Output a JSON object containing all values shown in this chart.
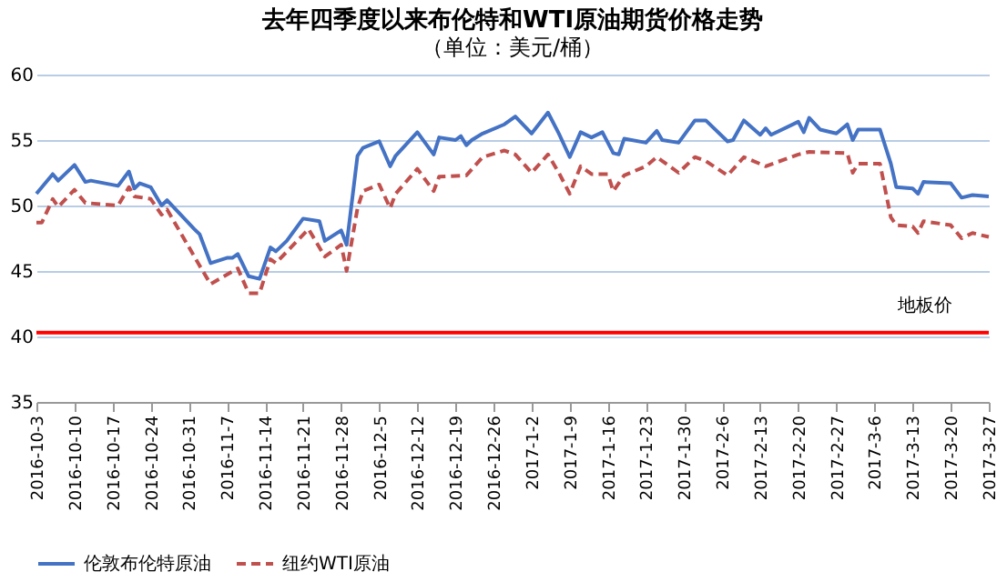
{
  "chart_data": {
    "type": "line",
    "title": "去年四季度以来布伦特和WTI原油期货价格走势",
    "subtitle": "（单位：美元/桶）",
    "xlim": [
      "2016-10-03",
      "2017-03-27"
    ],
    "xticks": [
      {
        "value": "2016-10-03",
        "label": "2016-10-3"
      },
      {
        "value": "2016-10-10",
        "label": "2016-10-10"
      },
      {
        "value": "2016-10-17",
        "label": "2016-10-17"
      },
      {
        "value": "2016-10-24",
        "label": "2016-10-24"
      },
      {
        "value": "2016-10-31",
        "label": "2016-10-31"
      },
      {
        "value": "2016-11-07",
        "label": "2016-11-7"
      },
      {
        "value": "2016-11-14",
        "label": "2016-11-14"
      },
      {
        "value": "2016-11-21",
        "label": "2016-11-21"
      },
      {
        "value": "2016-11-28",
        "label": "2016-11-28"
      },
      {
        "value": "2016-12-05",
        "label": "2016-12-5"
      },
      {
        "value": "2016-12-12",
        "label": "2016-12-12"
      },
      {
        "value": "2016-12-19",
        "label": "2016-12-19"
      },
      {
        "value": "2016-12-26",
        "label": "2016-12-26"
      },
      {
        "value": "2017-01-02",
        "label": "2017-1-2"
      },
      {
        "value": "2017-01-09",
        "label": "2017-1-9"
      },
      {
        "value": "2017-01-16",
        "label": "2017-1-16"
      },
      {
        "value": "2017-01-23",
        "label": "2017-1-23"
      },
      {
        "value": "2017-01-30",
        "label": "2017-1-30"
      },
      {
        "value": "2017-02-06",
        "label": "2017-2-6"
      },
      {
        "value": "2017-02-13",
        "label": "2017-2-13"
      },
      {
        "value": "2017-02-20",
        "label": "2017-2-20"
      },
      {
        "value": "2017-02-27",
        "label": "2017-2-27"
      },
      {
        "value": "2017-03-06",
        "label": "2017-3-6"
      },
      {
        "value": "2017-03-13",
        "label": "2017-3-13"
      },
      {
        "value": "2017-03-20",
        "label": "2017-3-20"
      },
      {
        "value": "2017-03-27",
        "label": "2017-3-27"
      }
    ],
    "ylim": [
      35,
      60
    ],
    "yticks": [
      35,
      40,
      45,
      50,
      55,
      60
    ],
    "grid": "y",
    "legend": "bottom",
    "marker": "none",
    "series": [
      {
        "name": "伦敦布伦特原油",
        "color": "#4472c4",
        "line_style": "solid",
        "x": [
          "2016-10-03",
          "2016-10-06",
          "2016-10-07",
          "2016-10-10",
          "2016-10-12",
          "2016-10-13",
          "2016-10-18",
          "2016-10-20",
          "2016-10-21",
          "2016-10-22",
          "2016-10-24",
          "2016-10-26",
          "2016-10-27",
          "2016-11-01",
          "2016-11-02",
          "2016-11-04",
          "2016-11-07",
          "2016-11-08",
          "2016-11-09",
          "2016-11-11",
          "2016-11-13",
          "2016-11-15",
          "2016-11-16",
          "2016-11-18",
          "2016-11-21",
          "2016-11-24",
          "2016-11-25",
          "2016-11-28",
          "2016-11-29",
          "2016-12-01",
          "2016-12-02",
          "2016-12-05",
          "2016-12-07",
          "2016-12-08",
          "2016-12-12",
          "2016-12-15",
          "2016-12-16",
          "2016-12-19",
          "2016-12-20",
          "2016-12-21",
          "2016-12-22",
          "2016-12-24",
          "2016-12-28",
          "2016-12-30",
          "2017-01-02",
          "2017-01-05",
          "2017-01-07",
          "2017-01-09",
          "2017-01-11",
          "2017-01-13",
          "2017-01-15",
          "2017-01-17",
          "2017-01-18",
          "2017-01-19",
          "2017-01-23",
          "2017-01-25",
          "2017-01-26",
          "2017-01-29",
          "2017-02-01",
          "2017-02-03",
          "2017-02-07",
          "2017-02-08",
          "2017-02-10",
          "2017-02-13",
          "2017-02-14",
          "2017-02-15",
          "2017-02-20",
          "2017-02-21",
          "2017-02-22",
          "2017-02-24",
          "2017-02-27",
          "2017-03-01",
          "2017-03-02",
          "2017-03-03",
          "2017-03-07",
          "2017-03-09",
          "2017-03-10",
          "2017-03-13",
          "2017-03-14",
          "2017-03-15",
          "2017-03-20",
          "2017-03-22",
          "2017-03-24",
          "2017-03-27"
        ],
        "values": [
          50.9,
          52.4,
          51.9,
          53.1,
          51.8,
          51.9,
          51.5,
          52.6,
          51.3,
          51.7,
          51.4,
          50.0,
          50.4,
          48.2,
          47.8,
          45.6,
          46.0,
          46.0,
          46.3,
          44.6,
          44.4,
          46.8,
          46.5,
          47.3,
          49.0,
          48.8,
          47.3,
          48.1,
          47.0,
          53.8,
          54.4,
          54.9,
          53.0,
          53.8,
          55.6,
          53.9,
          55.2,
          55.0,
          55.3,
          54.6,
          55.0,
          55.5,
          56.2,
          56.8,
          55.5,
          57.1,
          55.5,
          53.7,
          55.6,
          55.2,
          55.6,
          54.0,
          53.9,
          55.1,
          54.8,
          55.7,
          55.0,
          54.8,
          56.5,
          56.5,
          54.9,
          55.0,
          56.5,
          55.4,
          55.9,
          55.4,
          56.4,
          55.6,
          56.7,
          55.8,
          55.5,
          56.2,
          55.0,
          55.8,
          55.8,
          53.2,
          51.4,
          51.3,
          50.9,
          51.8,
          51.7,
          50.6,
          50.8,
          50.7
        ]
      },
      {
        "name": "纽约WTI原油",
        "color": "#c0504d",
        "line_style": "dashed",
        "x": [
          "2016-10-03",
          "2016-10-04",
          "2016-10-06",
          "2016-10-07",
          "2016-10-10",
          "2016-10-12",
          "2016-10-18",
          "2016-10-20",
          "2016-10-21",
          "2016-10-24",
          "2016-10-26",
          "2016-10-27",
          "2016-11-02",
          "2016-11-04",
          "2016-11-09",
          "2016-11-11",
          "2016-11-13",
          "2016-11-15",
          "2016-11-16",
          "2016-11-22",
          "2016-11-25",
          "2016-11-28",
          "2016-11-29",
          "2016-12-01",
          "2016-12-02",
          "2016-12-05",
          "2016-12-07",
          "2016-12-08",
          "2016-12-12",
          "2016-12-15",
          "2016-12-16",
          "2016-12-21",
          "2016-12-24",
          "2016-12-28",
          "2016-12-30",
          "2017-01-02",
          "2017-01-05",
          "2017-01-07",
          "2017-01-09",
          "2017-01-11",
          "2017-01-13",
          "2017-01-16",
          "2017-01-17",
          "2017-01-19",
          "2017-01-23",
          "2017-01-25",
          "2017-01-29",
          "2017-02-01",
          "2017-02-03",
          "2017-02-07",
          "2017-02-10",
          "2017-02-14",
          "2017-02-20",
          "2017-02-22",
          "2017-03-01",
          "2017-03-02",
          "2017-03-03",
          "2017-03-07",
          "2017-03-09",
          "2017-03-10",
          "2017-03-13",
          "2017-03-14",
          "2017-03-15",
          "2017-03-20",
          "2017-03-22",
          "2017-03-24",
          "2017-03-27"
        ],
        "values": [
          48.7,
          48.7,
          50.5,
          49.9,
          51.2,
          50.2,
          50.0,
          51.4,
          50.7,
          50.5,
          49.3,
          49.7,
          45.4,
          44.0,
          45.2,
          43.3,
          43.3,
          45.9,
          45.6,
          48.2,
          46.1,
          47.0,
          45.0,
          49.8,
          51.1,
          51.6,
          49.8,
          50.9,
          52.8,
          51.1,
          52.2,
          52.3,
          53.7,
          54.2,
          53.9,
          52.5,
          53.9,
          52.5,
          50.9,
          53.0,
          52.4,
          52.4,
          51.1,
          52.3,
          53.0,
          53.7,
          52.5,
          53.7,
          53.4,
          52.3,
          53.7,
          53.0,
          53.9,
          54.1,
          54.0,
          52.5,
          53.2,
          53.2,
          49.1,
          48.5,
          48.4,
          47.9,
          48.8,
          48.5,
          47.5,
          47.9,
          47.6
        ]
      }
    ],
    "ref_lines": [
      {
        "axis": "y",
        "value": 40.3,
        "label": "地板价",
        "color": "#ff0000",
        "line_style": "solid"
      }
    ]
  }
}
